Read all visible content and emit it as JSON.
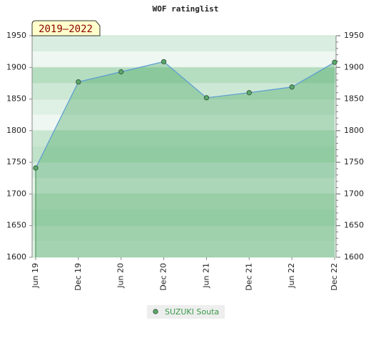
{
  "chart_data": {
    "type": "line",
    "title": "WOF ratinglist",
    "annotation": "2019–2022",
    "categories": [
      "Jun 19",
      "Dec 19",
      "Jun 20",
      "Dec 20",
      "Jun 21",
      "Dec 21",
      "Jun 22",
      "Dec 22"
    ],
    "series": [
      {
        "name": "SUZUKI Souta",
        "color": "#5aa86a",
        "line_color": "#5b9bd5",
        "values": [
          1741,
          1877,
          1893,
          1909,
          1852,
          1860,
          1869,
          1908
        ]
      }
    ],
    "ylim": [
      1600,
      1950
    ],
    "yticks": [
      1600,
      1650,
      1700,
      1750,
      1800,
      1850,
      1900,
      1950
    ],
    "y2lim": [
      1600,
      1950
    ],
    "y2ticks": [
      1600,
      1650,
      1700,
      1750,
      1800,
      1850,
      1900,
      1950
    ],
    "grid": true
  }
}
